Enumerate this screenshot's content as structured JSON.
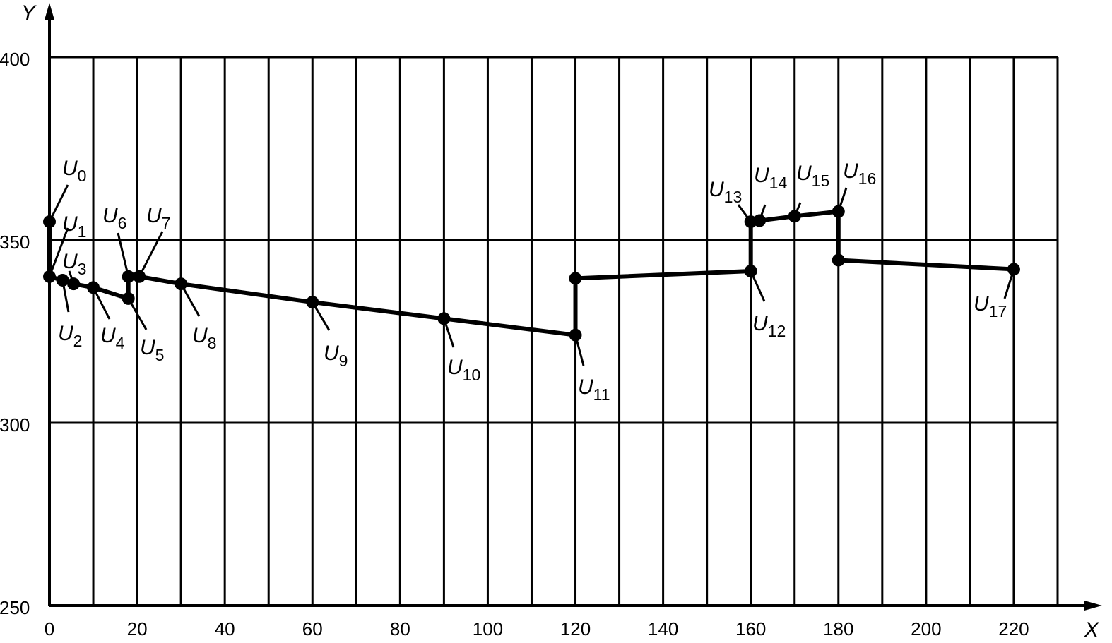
{
  "chart_data": {
    "type": "line",
    "title": "",
    "xlabel": "X",
    "ylabel": "Y",
    "xlim": [
      0,
      230
    ],
    "ylim": [
      250,
      400
    ],
    "x_ticks": [
      "0",
      "20",
      "40",
      "60",
      "80",
      "100",
      "120",
      "140",
      "160",
      "180",
      "200",
      "220"
    ],
    "y_ticks": [
      "250",
      "300",
      "350",
      "400"
    ],
    "grid": true,
    "series": [
      {
        "name": "path",
        "points": [
          {
            "label": "U",
            "sub": "0",
            "x": 0,
            "y": 355
          },
          {
            "label": "U",
            "sub": "1",
            "x": 0,
            "y": 340
          },
          {
            "label": "U",
            "sub": "2",
            "x": 3,
            "y": 339
          },
          {
            "label": "U",
            "sub": "3",
            "x": 5.5,
            "y": 338
          },
          {
            "label": "U",
            "sub": "4",
            "x": 10,
            "y": 337
          },
          {
            "label": "U",
            "sub": "5",
            "x": 18,
            "y": 334
          },
          {
            "label": "U",
            "sub": "6",
            "x": 18,
            "y": 340
          },
          {
            "label": "U",
            "sub": "7",
            "x": 20.5,
            "y": 340
          },
          {
            "label": "U",
            "sub": "8",
            "x": 30,
            "y": 338
          },
          {
            "label": "U",
            "sub": "9",
            "x": 60,
            "y": 333
          },
          {
            "label": "U",
            "sub": "10",
            "x": 90,
            "y": 328.5
          },
          {
            "label": "U",
            "sub": "11",
            "x": 120,
            "y": 324
          },
          {
            "label": "",
            "sub": "",
            "x": 120,
            "y": 339.5
          },
          {
            "label": "U",
            "sub": "12",
            "x": 160,
            "y": 341.5
          },
          {
            "label": "U",
            "sub": "13",
            "x": 160,
            "y": 355
          },
          {
            "label": "U",
            "sub": "14",
            "x": 162,
            "y": 355.3
          },
          {
            "label": "U",
            "sub": "15",
            "x": 170,
            "y": 356.5
          },
          {
            "label": "U",
            "sub": "16",
            "x": 180,
            "y": 357.8
          },
          {
            "label": "",
            "sub": "",
            "x": 180,
            "y": 344.5
          },
          {
            "label": "U",
            "sub": "17",
            "x": 220,
            "y": 342
          }
        ]
      }
    ]
  }
}
